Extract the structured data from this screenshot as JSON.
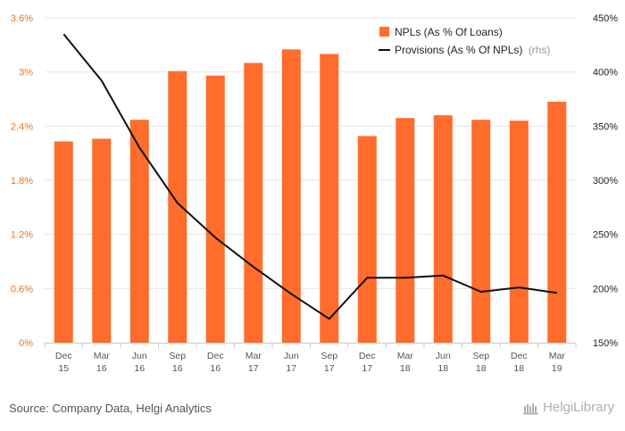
{
  "chart_data": {
    "type": "bar+line",
    "categories": [
      [
        "Dec",
        "15"
      ],
      [
        "Mar",
        "16"
      ],
      [
        "Jun",
        "16"
      ],
      [
        "Sep",
        "16"
      ],
      [
        "Dec",
        "16"
      ],
      [
        "Mar",
        "17"
      ],
      [
        "Jun",
        "17"
      ],
      [
        "Sep",
        "17"
      ],
      [
        "Dec",
        "17"
      ],
      [
        "Mar",
        "18"
      ],
      [
        "Jun",
        "18"
      ],
      [
        "Sep",
        "18"
      ],
      [
        "Dec",
        "18"
      ],
      [
        "Mar",
        "19"
      ]
    ],
    "series": [
      {
        "name": "NPLs (As % Of Loans)",
        "type": "bar",
        "axis": "left",
        "color": "#ff6c2b",
        "values": [
          2.23,
          2.26,
          2.47,
          3.01,
          2.96,
          3.1,
          3.25,
          3.2,
          2.29,
          2.49,
          2.52,
          2.47,
          2.46,
          2.67
        ]
      },
      {
        "name": "Provisions (As % Of NPLs)",
        "note": "(rhs)",
        "type": "line",
        "axis": "right",
        "color": "#111111",
        "values": [
          435,
          392,
          330,
          279,
          247,
          220,
          195,
          172,
          210,
          210,
          212,
          197,
          201,
          196
        ]
      }
    ],
    "y_left": {
      "min": 0,
      "max": 3.6,
      "ticks": [
        "0%",
        "0.6%",
        "1.2%",
        "1.8%",
        "2.4%",
        "3%",
        "3.6%"
      ]
    },
    "y_right": {
      "min": 150,
      "max": 450,
      "ticks": [
        "150%",
        "200%",
        "250%",
        "300%",
        "350%",
        "400%",
        "450%"
      ]
    },
    "grid": true,
    "legend_position": "top-right"
  },
  "footer": {
    "source": "Source: Company Data, Helgi Analytics",
    "brand": "HelgiLibrary"
  }
}
